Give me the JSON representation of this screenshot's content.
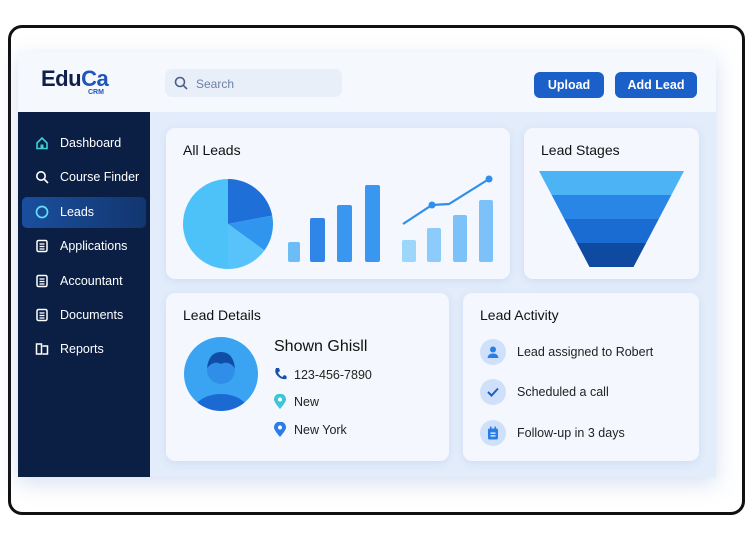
{
  "app": {
    "logo_main": "Edu",
    "logo_accent": "Ca",
    "logo_sub": "CRM"
  },
  "header": {
    "search_placeholder": "Search",
    "upload_label": "Upload",
    "add_lead_label": "Add Lead"
  },
  "sidebar": {
    "items": [
      {
        "label": "Dashboard",
        "icon": "home-icon",
        "active": false
      },
      {
        "label": "Course Finder",
        "icon": "search-icon",
        "active": false
      },
      {
        "label": "Leads",
        "icon": "circle-icon",
        "active": true
      },
      {
        "label": "Applications",
        "icon": "document-icon",
        "active": false
      },
      {
        "label": "Accountant",
        "icon": "document-icon",
        "active": false
      },
      {
        "label": "Documents",
        "icon": "document-icon",
        "active": false
      },
      {
        "label": "Reports",
        "icon": "book-icon",
        "active": false
      }
    ]
  },
  "all_leads": {
    "title": "All Leads"
  },
  "lead_stages": {
    "title": "Lead Stages"
  },
  "lead_details": {
    "title": "Lead Details",
    "name": "Shown Ghisll",
    "phone": "123-456-7890",
    "status": "New",
    "location": "New York"
  },
  "lead_activity": {
    "title": "Lead Activity",
    "items": [
      {
        "text": "Lead assigned to Robert",
        "icon": "user-icon"
      },
      {
        "text": "Scheduled a call",
        "icon": "check-icon"
      },
      {
        "text": "Follow-up in 3 days",
        "icon": "calendar-icon"
      }
    ]
  },
  "colors": {
    "sidebar": "#0b1f45",
    "accent": "#1b5fc8",
    "background": "#e2ecfa"
  },
  "chart_data": [
    {
      "type": "pie",
      "values": [
        22,
        13,
        15,
        50
      ],
      "colors": [
        "#1e6fd8",
        "#2f95ee",
        "#58c3fa",
        "#4cc2f8"
      ]
    },
    {
      "type": "bar",
      "values": [
        20,
        44,
        57,
        77
      ],
      "colors": [
        "#6cbdf6",
        "#2f86e8",
        "#3a97f0",
        "#3a97f0"
      ]
    },
    {
      "type": "bar",
      "values": [
        22,
        34,
        47,
        62
      ],
      "line": [
        33,
        52,
        53,
        78
      ],
      "colors": [
        "#9cd6fb",
        "#8ccbfa",
        "#7cc2f8",
        "#7cc2f8"
      ]
    },
    {
      "type": "funnel",
      "values": [
        4,
        3,
        2,
        1
      ],
      "colors": [
        "#4cb4f5",
        "#2a86e6",
        "#1a6bd2",
        "#0e4aa0"
      ]
    }
  ]
}
